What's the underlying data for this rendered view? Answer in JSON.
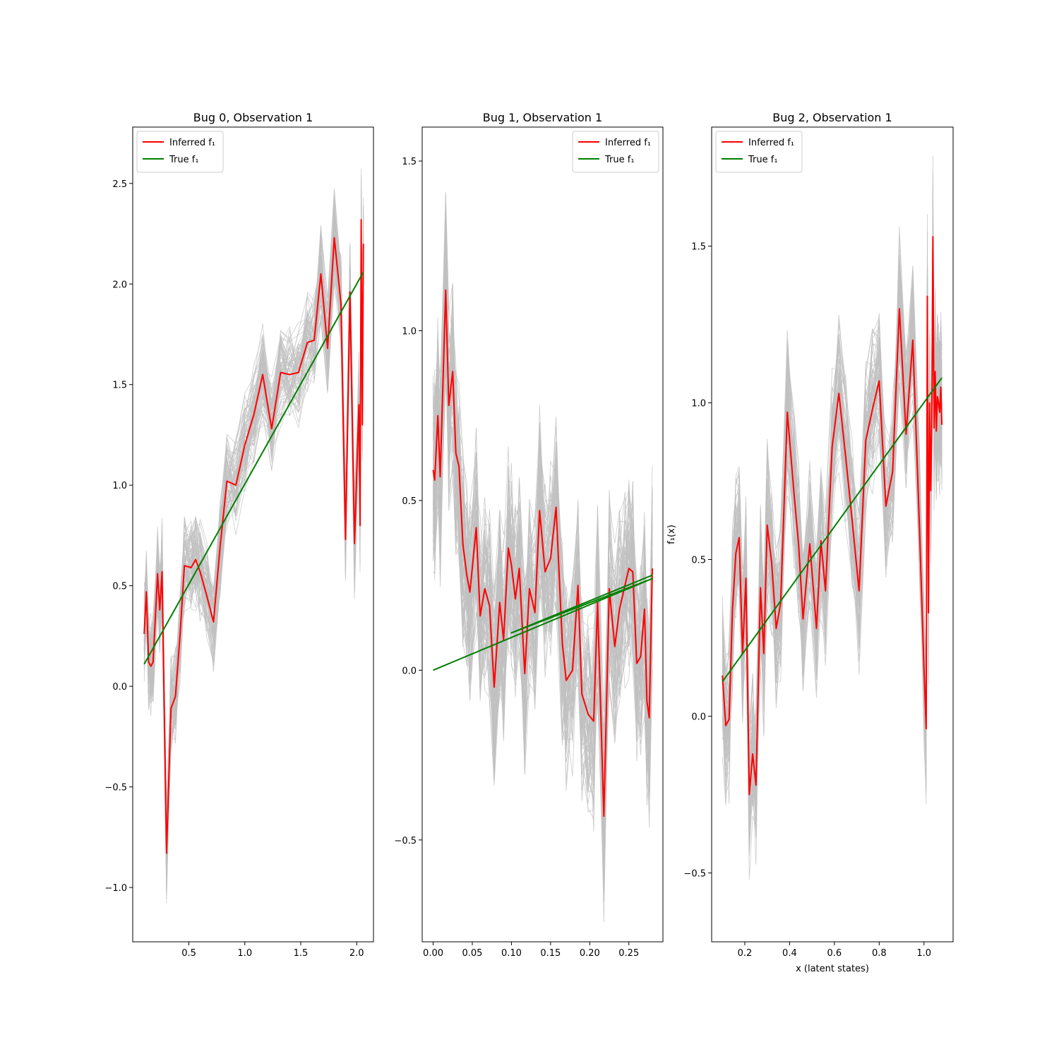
{
  "colors": {
    "inferred": "#ff0000",
    "true": "#008000",
    "samples": "#c0c0c0",
    "axes": "#000000"
  },
  "ylabel": "f₁(x)",
  "xlabel": "x (latent states)",
  "chart_data": [
    {
      "type": "line",
      "title": "Bug 0, Observation 1",
      "xlim": [
        -0.002,
        2.15
      ],
      "ylim": [
        -1.27,
        2.78
      ],
      "xticks": [
        {
          "v": 0.5,
          "label": "0.5"
        },
        {
          "v": 1.0,
          "label": "1.0"
        },
        {
          "v": 1.5,
          "label": "1.5"
        },
        {
          "v": 2.0,
          "label": "2.0"
        }
      ],
      "yticks": [
        {
          "v": -1.0,
          "label": "−1.0"
        },
        {
          "v": -0.5,
          "label": "−0.5"
        },
        {
          "v": 0.0,
          "label": "0.0"
        },
        {
          "v": 0.5,
          "label": "0.5"
        },
        {
          "v": 1.0,
          "label": "1.0"
        },
        {
          "v": 1.5,
          "label": "1.5"
        },
        {
          "v": 2.0,
          "label": "2.0"
        },
        {
          "v": 2.5,
          "label": "2.5"
        }
      ],
      "legend_position": "upper-left",
      "legend": [
        {
          "name": "Inferred f₁",
          "color": "#ff0000"
        },
        {
          "name": "True f₁",
          "color": "#008000"
        }
      ],
      "samples_band_halfwidth": 0.2,
      "series": [
        {
          "name": "Inferred f₁",
          "x": [
            0.1,
            0.12,
            0.14,
            0.16,
            0.18,
            0.22,
            0.24,
            0.26,
            0.3,
            0.34,
            0.38,
            0.42,
            0.46,
            0.52,
            0.56,
            0.6,
            0.66,
            0.72,
            0.78,
            0.84,
            0.92,
            1.0,
            1.08,
            1.16,
            1.24,
            1.32,
            1.4,
            1.48,
            1.56,
            1.62,
            1.68,
            1.74,
            1.8,
            1.86,
            1.9,
            1.94,
            1.98,
            2.02,
            2.03,
            2.04,
            2.05,
            2.06
          ],
          "y": [
            0.26,
            0.47,
            0.12,
            0.1,
            0.12,
            0.56,
            0.38,
            0.57,
            -0.83,
            -0.11,
            -0.05,
            0.25,
            0.6,
            0.59,
            0.63,
            0.57,
            0.45,
            0.32,
            0.7,
            1.02,
            1.0,
            1.2,
            1.35,
            1.55,
            1.28,
            1.56,
            1.55,
            1.56,
            1.71,
            1.72,
            2.05,
            1.68,
            2.23,
            1.9,
            0.73,
            1.96,
            0.71,
            1.4,
            0.8,
            2.32,
            1.3,
            2.2
          ]
        },
        {
          "name": "True f₁",
          "x": [
            0.1,
            2.06
          ],
          "y": [
            0.11,
            2.06
          ]
        }
      ]
    },
    {
      "type": "line",
      "title": "Bug 1, Observation 1",
      "xlim": [
        -0.014,
        0.2935
      ],
      "ylim": [
        -0.8,
        1.6
      ],
      "xticks": [
        {
          "v": 0.0,
          "label": "0.00"
        },
        {
          "v": 0.05,
          "label": "0.05"
        },
        {
          "v": 0.1,
          "label": "0.10"
        },
        {
          "v": 0.15,
          "label": "0.15"
        },
        {
          "v": 0.2,
          "label": "0.20"
        },
        {
          "v": 0.25,
          "label": "0.25"
        }
      ],
      "yticks": [
        {
          "v": -0.5,
          "label": "−0.5"
        },
        {
          "v": 0.0,
          "label": "0.0"
        },
        {
          "v": 0.5,
          "label": "0.5"
        },
        {
          "v": 1.0,
          "label": "1.0"
        },
        {
          "v": 1.5,
          "label": "1.5"
        }
      ],
      "legend_position": "upper-right",
      "legend": [
        {
          "name": "Inferred f₁",
          "color": "#ff0000"
        },
        {
          "name": "True f₁",
          "color": "#008000"
        }
      ],
      "samples_band_halfwidth": 0.24,
      "series": [
        {
          "name": "Inferred f₁",
          "x": [
            0.0,
            0.002,
            0.006,
            0.009,
            0.016,
            0.02,
            0.025,
            0.029,
            0.033,
            0.038,
            0.043,
            0.047,
            0.055,
            0.06,
            0.066,
            0.072,
            0.078,
            0.085,
            0.09,
            0.096,
            0.1,
            0.105,
            0.11,
            0.117,
            0.123,
            0.13,
            0.136,
            0.143,
            0.15,
            0.157,
            0.165,
            0.17,
            0.178,
            0.185,
            0.19,
            0.198,
            0.205,
            0.21,
            0.218,
            0.225,
            0.232,
            0.238,
            0.245,
            0.25,
            0.255,
            0.26,
            0.265,
            0.27,
            0.273,
            0.276,
            0.28
          ],
          "y": [
            0.59,
            0.56,
            0.75,
            0.57,
            1.12,
            0.78,
            0.88,
            0.64,
            0.6,
            0.37,
            0.28,
            0.23,
            0.42,
            0.16,
            0.24,
            0.19,
            -0.05,
            0.2,
            0.09,
            0.36,
            0.31,
            0.21,
            0.3,
            -0.01,
            0.24,
            0.17,
            0.47,
            0.29,
            0.33,
            0.48,
            0.08,
            -0.03,
            0.0,
            0.25,
            -0.07,
            -0.13,
            -0.15,
            0.2,
            -0.43,
            0.24,
            0.07,
            0.18,
            0.25,
            0.3,
            0.29,
            0.02,
            0.04,
            0.18,
            -0.09,
            -0.14,
            0.3
          ]
        },
        {
          "name": "True f₁",
          "x": [
            0.0,
            0.28,
            0.1,
            0.28
          ],
          "y": [
            0.0,
            0.27,
            0.11,
            0.28
          ]
        }
      ]
    },
    {
      "type": "line",
      "title": "Bug 2, Observation 1",
      "xlim": [
        0.052,
        1.13
      ],
      "ylim": [
        -0.72,
        1.88
      ],
      "xticks": [
        {
          "v": 0.2,
          "label": "0.2"
        },
        {
          "v": 0.4,
          "label": "0.4"
        },
        {
          "v": 0.6,
          "label": "0.6"
        },
        {
          "v": 0.8,
          "label": "0.8"
        },
        {
          "v": 1.0,
          "label": "1.0"
        }
      ],
      "yticks": [
        {
          "v": -0.5,
          "label": "−0.5"
        },
        {
          "v": 0.0,
          "label": "0.0"
        },
        {
          "v": 0.5,
          "label": "0.5"
        },
        {
          "v": 1.0,
          "label": "1.0"
        },
        {
          "v": 1.5,
          "label": "1.5"
        }
      ],
      "legend_position": "upper-left",
      "legend": [
        {
          "name": "Inferred f₁",
          "color": "#ff0000"
        },
        {
          "name": "True f₁",
          "color": "#008000"
        }
      ],
      "samples_band_halfwidth": 0.2,
      "series": [
        {
          "name": "Inferred f₁",
          "x": [
            0.1,
            0.115,
            0.13,
            0.145,
            0.16,
            0.175,
            0.19,
            0.205,
            0.22,
            0.235,
            0.25,
            0.27,
            0.285,
            0.3,
            0.32,
            0.34,
            0.36,
            0.39,
            0.42,
            0.44,
            0.46,
            0.49,
            0.52,
            0.54,
            0.56,
            0.59,
            0.62,
            0.65,
            0.68,
            0.71,
            0.74,
            0.77,
            0.8,
            0.83,
            0.86,
            0.89,
            0.92,
            0.95,
            0.98,
            1.0,
            1.01,
            1.015,
            1.02,
            1.025,
            1.03,
            1.035,
            1.04,
            1.045,
            1.05,
            1.055,
            1.06,
            1.065,
            1.07,
            1.075,
            1.08
          ],
          "y": [
            0.13,
            -0.03,
            -0.01,
            0.34,
            0.52,
            0.57,
            0.2,
            0.44,
            -0.25,
            -0.12,
            -0.22,
            0.41,
            0.2,
            0.61,
            0.49,
            0.28,
            0.36,
            0.97,
            0.71,
            0.55,
            0.31,
            0.55,
            0.28,
            0.56,
            0.4,
            0.86,
            1.03,
            0.83,
            0.62,
            0.4,
            0.88,
            0.98,
            1.07,
            0.67,
            0.78,
            1.3,
            0.9,
            1.2,
            0.6,
            0.15,
            -0.04,
            1.34,
            0.33,
            1.0,
            0.72,
            0.95,
            1.53,
            0.92,
            1.1,
            0.91,
            1.02,
            1.0,
            0.97,
            1.05,
            0.93
          ]
        },
        {
          "name": "True f₁",
          "x": [
            0.1,
            1.08
          ],
          "y": [
            0.11,
            1.08
          ]
        }
      ]
    }
  ]
}
